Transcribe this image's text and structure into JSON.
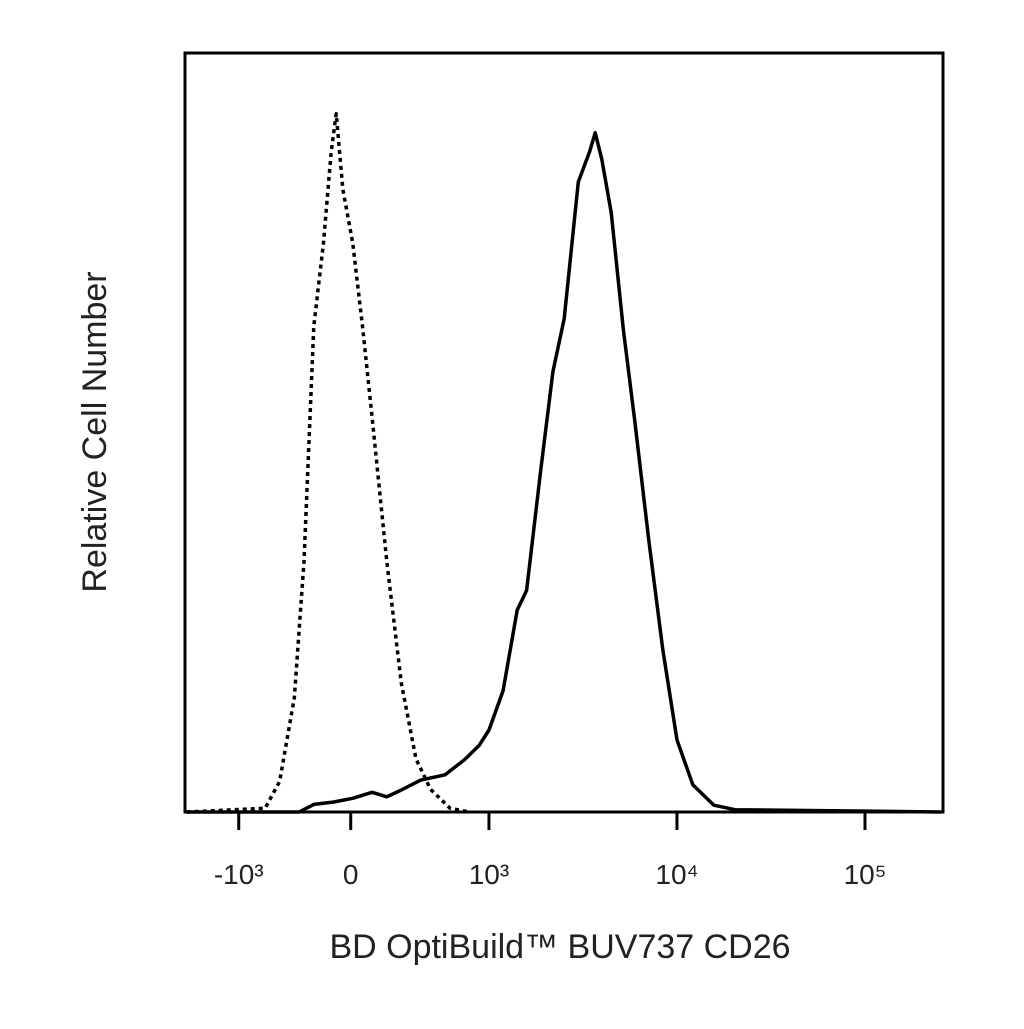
{
  "chart_data": {
    "type": "histogram-line",
    "x_label": "BD OptiBuild™ BUV737 CD26",
    "y_label": "Relative Cell Number",
    "xscale": "biexponential",
    "xlim": [
      -1400,
      260000
    ],
    "ylim": [
      0,
      100
    ],
    "xticks": [
      {
        "value": -1000,
        "label": "-10³"
      },
      0,
      {
        "value": 1000,
        "label": "10³"
      },
      {
        "value": 10000,
        "label": "10⁴"
      },
      {
        "value": 100000,
        "label": "10⁵"
      }
    ],
    "series": [
      {
        "color": "#000000",
        "dash": "dotted",
        "x": [
          -1370,
          -765,
          -635,
          -504,
          -417,
          -330,
          -243,
          -174,
          -130,
          -70,
          14,
          85,
          155,
          261,
          366,
          472,
          577,
          718,
          859
        ],
        "values": [
          0,
          0.5,
          4,
          15,
          33,
          64,
          75,
          87,
          92,
          82,
          75,
          64,
          52,
          33,
          17,
          7,
          3,
          0.5,
          0
        ]
      },
      {
        "color": "#000000",
        "dash": "solid",
        "x": [
          -1370,
          -461,
          -330,
          -157,
          14,
          155,
          261,
          366,
          507,
          683,
          824,
          930,
          1000,
          1189,
          1413,
          1585,
          1884,
          2188,
          2512,
          2985,
          3428,
          3673,
          3981,
          4467,
          5188,
          5957,
          7079,
          8414,
          10000,
          12140,
          15720,
          20370,
          253800
        ],
        "values": [
          0,
          0,
          1,
          1.3,
          1.8,
          2.6,
          2,
          2.9,
          4.2,
          4.9,
          6.9,
          8.8,
          10.8,
          16,
          26.6,
          29.2,
          45,
          58,
          65,
          83,
          87,
          89.5,
          86,
          79,
          63.5,
          51.6,
          35.8,
          21.3,
          9.5,
          3.6,
          0.9,
          0.3,
          0
        ]
      }
    ]
  }
}
